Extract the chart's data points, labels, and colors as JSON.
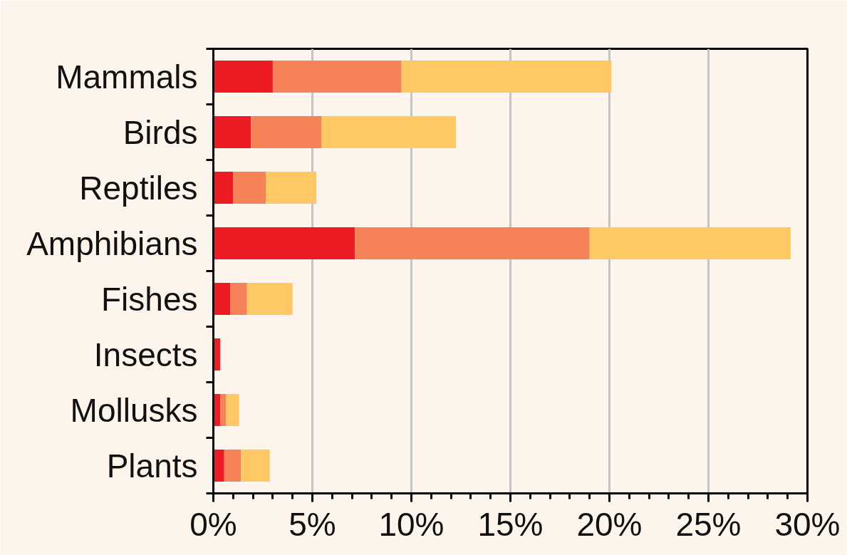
{
  "chart_data": {
    "type": "bar",
    "orientation": "horizontal",
    "stacked": true,
    "categories": [
      "Mammals",
      "Birds",
      "Reptiles",
      "Amphibians",
      "Fishes",
      "Insects",
      "Mollusks",
      "Plants"
    ],
    "series": [
      {
        "color": "#ed1c24",
        "values": [
          3.0,
          1.9,
          1.0,
          7.15,
          0.85,
          0.35,
          0.35,
          0.55
        ]
      },
      {
        "color": "#f58357",
        "values": [
          6.5,
          3.55,
          1.65,
          11.85,
          0.85,
          0,
          0.3,
          0.85
        ]
      },
      {
        "color": "#fec864",
        "values": [
          10.6,
          6.8,
          2.55,
          10.15,
          2.3,
          0,
          0.65,
          1.45
        ]
      }
    ],
    "xlim": [
      0,
      30
    ],
    "xticks": [
      {
        "value": 0,
        "label": "0%"
      },
      {
        "value": 5,
        "label": "5%"
      },
      {
        "value": 10,
        "label": "10%"
      },
      {
        "value": 15,
        "label": "15%"
      },
      {
        "value": 20,
        "label": "20%"
      },
      {
        "value": 25,
        "label": "25%"
      },
      {
        "value": 30,
        "label": "30%"
      }
    ],
    "grid": "x"
  }
}
